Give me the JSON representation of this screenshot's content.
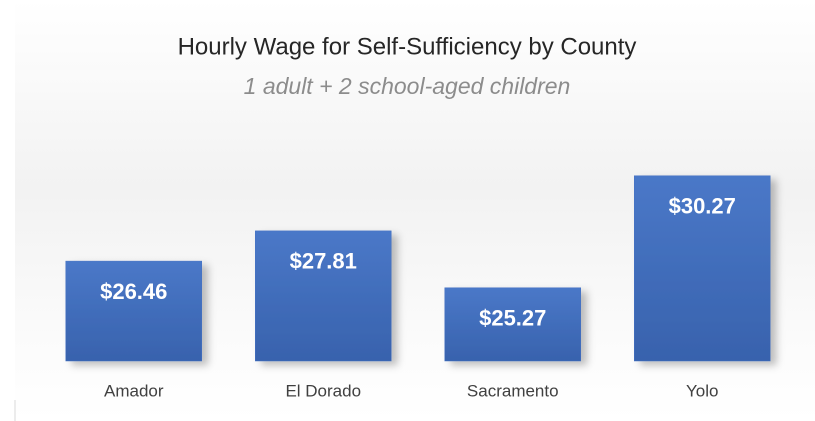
{
  "chart_data": {
    "type": "bar",
    "title": "Hourly Wage for Self-Sufficiency by County",
    "subtitle": "1 adult + 2 school-aged children",
    "categories": [
      "Amador",
      "El Dorado",
      "Sacramento",
      "Yolo"
    ],
    "values": [
      26.46,
      27.81,
      25.27,
      30.27
    ],
    "value_labels": [
      "$26.46",
      "$27.81",
      "$25.27",
      "$30.27"
    ],
    "color": "#4472c4",
    "ylim": [
      22,
      32
    ]
  }
}
